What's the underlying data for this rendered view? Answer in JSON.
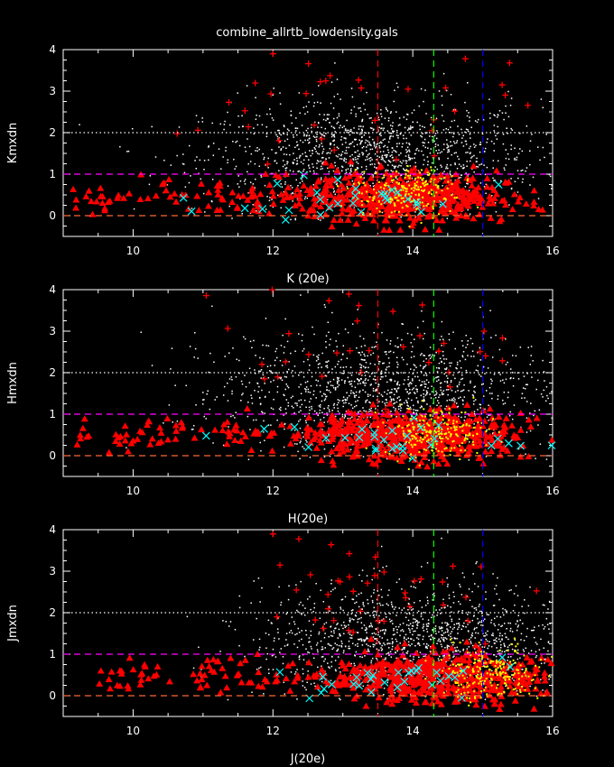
{
  "title": "combine_allrtb_lowdensity.gals",
  "colors": {
    "background": "#000000",
    "axes": "#ffffff",
    "galaxy_dots": "#ffffff",
    "triangles": "#ff0000",
    "plus_markers": "#ff0000",
    "cross_markers": "#00ffff",
    "yellow_dots": "#ffff00",
    "line_red": "#ff0000",
    "line_green": "#00ff00",
    "line_blue": "#0000ff",
    "line_magenta": "#ff00ff",
    "line_orange": "#ff6633",
    "line_white": "#ffffff"
  },
  "chart_data": [
    {
      "type": "scatter",
      "xlabel": "K (20e)",
      "ylabel": "Kmxdn",
      "xlim": [
        9,
        16
      ],
      "ylim": [
        -0.5,
        4
      ],
      "x_ticks": [
        "10",
        "12",
        "14",
        "16"
      ],
      "y_ticks": [
        "0",
        "1",
        "2",
        "3",
        "4"
      ],
      "vlines": [
        {
          "x": 13.5,
          "color": "red",
          "style": "dashed"
        },
        {
          "x": 14.3,
          "color": "green",
          "style": "dashed"
        },
        {
          "x": 15.0,
          "color": "blue",
          "style": "dashed"
        }
      ],
      "hlines": [
        {
          "y": 2,
          "color": "white",
          "style": "dotted"
        },
        {
          "y": 1,
          "color": "magenta",
          "style": "dashed"
        },
        {
          "y": 0,
          "color": "orange",
          "style": "dashed"
        }
      ],
      "clusters": {
        "dots": {
          "center": [
            13.4,
            1.4
          ],
          "spread": [
            1.2,
            0.7
          ],
          "count": 1400
        },
        "triangles": {
          "center": [
            13.9,
            0.45
          ],
          "spread": [
            0.7,
            0.3
          ],
          "count": 650,
          "xmin": 9.1
        },
        "yellow": {
          "center": [
            13.9,
            0.6
          ],
          "spread": [
            0.35,
            0.3
          ],
          "count": 220
        },
        "plus": {
          "center": [
            13.0,
            2.6
          ],
          "spread": [
            1.2,
            0.9
          ],
          "count": 40
        },
        "cross": {
          "center": [
            13.3,
            0.4
          ],
          "spread": [
            1.0,
            0.25
          ],
          "count": 30
        }
      }
    },
    {
      "type": "scatter",
      "xlabel": "H(20e)",
      "ylabel": "Hmxdn",
      "xlim": [
        9,
        16
      ],
      "ylim": [
        -0.5,
        4
      ],
      "x_ticks": [
        "10",
        "12",
        "14",
        "16"
      ],
      "y_ticks": [
        "0",
        "1",
        "2",
        "3",
        "4"
      ],
      "vlines": [
        {
          "x": 13.5,
          "color": "red",
          "style": "dashed"
        },
        {
          "x": 14.3,
          "color": "green",
          "style": "dashed"
        },
        {
          "x": 15.0,
          "color": "blue",
          "style": "dashed"
        }
      ],
      "hlines": [
        {
          "y": 2,
          "color": "white",
          "style": "dotted"
        },
        {
          "y": 1,
          "color": "magenta",
          "style": "dashed"
        },
        {
          "y": 0,
          "color": "orange",
          "style": "dashed"
        }
      ],
      "clusters": {
        "dots": {
          "center": [
            13.6,
            1.5
          ],
          "spread": [
            1.2,
            0.75
          ],
          "count": 1400
        },
        "triangles": {
          "center": [
            14.0,
            0.5
          ],
          "spread": [
            0.7,
            0.3
          ],
          "count": 650,
          "xmin": 9.2
        },
        "yellow": {
          "center": [
            14.3,
            0.6
          ],
          "spread": [
            0.35,
            0.3
          ],
          "count": 220
        },
        "plus": {
          "center": [
            13.0,
            2.8
          ],
          "spread": [
            1.1,
            0.8
          ],
          "count": 40
        },
        "cross": {
          "center": [
            13.5,
            0.4
          ],
          "spread": [
            1.0,
            0.25
          ],
          "count": 30
        }
      }
    },
    {
      "type": "scatter",
      "xlabel": "J(20e)",
      "ylabel": "Jmxdn",
      "xlim": [
        9,
        16
      ],
      "ylim": [
        -0.5,
        4
      ],
      "x_ticks": [
        "10",
        "12",
        "14",
        "16"
      ],
      "y_ticks": [
        "0",
        "1",
        "2",
        "3",
        "4"
      ],
      "vlines": [
        {
          "x": 13.5,
          "color": "red",
          "style": "dashed"
        },
        {
          "x": 14.3,
          "color": "green",
          "style": "dashed"
        },
        {
          "x": 15.0,
          "color": "blue",
          "style": "dashed"
        }
      ],
      "hlines": [
        {
          "y": 2,
          "color": "white",
          "style": "dotted"
        },
        {
          "y": 1,
          "color": "magenta",
          "style": "dashed"
        },
        {
          "y": 0,
          "color": "orange",
          "style": "dashed"
        }
      ],
      "clusters": {
        "dots": {
          "center": [
            14.0,
            1.3
          ],
          "spread": [
            1.1,
            0.7
          ],
          "count": 1400
        },
        "triangles": {
          "center": [
            14.4,
            0.45
          ],
          "spread": [
            0.8,
            0.3
          ],
          "count": 650,
          "xmin": 9.5
        },
        "yellow": {
          "center": [
            15.1,
            0.55
          ],
          "spread": [
            0.35,
            0.3
          ],
          "count": 220
        },
        "plus": {
          "center": [
            13.8,
            2.6
          ],
          "spread": [
            1.1,
            0.9
          ],
          "count": 40
        },
        "cross": {
          "center": [
            13.7,
            0.4
          ],
          "spread": [
            1.0,
            0.25
          ],
          "count": 30
        }
      }
    }
  ]
}
